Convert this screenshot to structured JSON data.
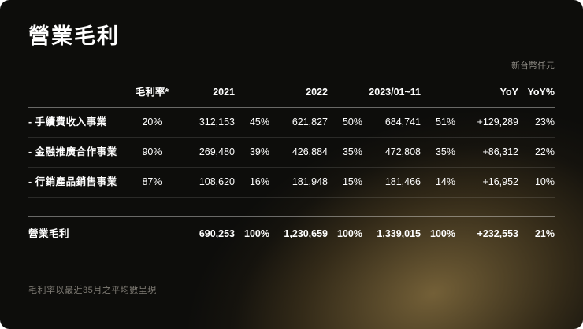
{
  "colors": {
    "background": "#0d0d0b",
    "accent_gold": "#c8a45c",
    "text": "#ffffff",
    "muted": "#8f8c85"
  },
  "slide": {
    "title": "營業毛利",
    "unit_note": "新台幣仟元",
    "footnote": "毛利率以最近35月之平均數呈現"
  },
  "table": {
    "headers": {
      "margin": "毛利率*",
      "y2021": "2021",
      "y2022": "2022",
      "y2023": "2023/01~11",
      "yoy": "YoY",
      "yoy_pct": "YoY%"
    },
    "rows": [
      {
        "label": "- 手續費收入事業",
        "margin": "20%",
        "v2021": "312,153",
        "p2021": "45%",
        "v2022": "621,827",
        "p2022": "50%",
        "v2023": "684,741",
        "p2023": "51%",
        "yoy": "+129,289",
        "yoy_pct": "23%"
      },
      {
        "label": "- 金融推廣合作事業",
        "margin": "90%",
        "v2021": "269,480",
        "p2021": "39%",
        "v2022": "426,884",
        "p2022": "35%",
        "v2023": "472,808",
        "p2023": "35%",
        "yoy": "+86,312",
        "yoy_pct": "22%"
      },
      {
        "label": "- 行銷產品銷售事業",
        "margin": "87%",
        "v2021": "108,620",
        "p2021": "16%",
        "v2022": "181,948",
        "p2022": "15%",
        "v2023": "181,466",
        "p2023": "14%",
        "yoy": "+16,952",
        "yoy_pct": "10%"
      }
    ],
    "total": {
      "label": "營業毛利",
      "margin": "",
      "v2021": "690,253",
      "p2021": "100%",
      "v2022": "1,230,659",
      "p2022": "100%",
      "v2023": "1,339,015",
      "p2023": "100%",
      "yoy": "+232,553",
      "yoy_pct": "21%"
    }
  }
}
